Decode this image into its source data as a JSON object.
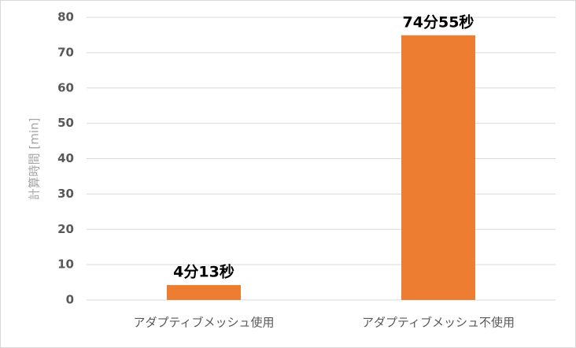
{
  "chart_data": {
    "type": "bar",
    "y_label": "計算時間 [min]",
    "categories": [
      "アダプティブメッシュ使用",
      "アダプティブメッシュ不使用"
    ],
    "values": [
      4.2167,
      74.9167
    ],
    "value_labels": [
      "4分13秒",
      "74分55秒"
    ],
    "color": "#ed7d31",
    "ylim": [
      0,
      80
    ],
    "yticks": [
      0,
      10,
      20,
      30,
      40,
      50,
      60,
      70,
      80
    ],
    "grid": true
  }
}
